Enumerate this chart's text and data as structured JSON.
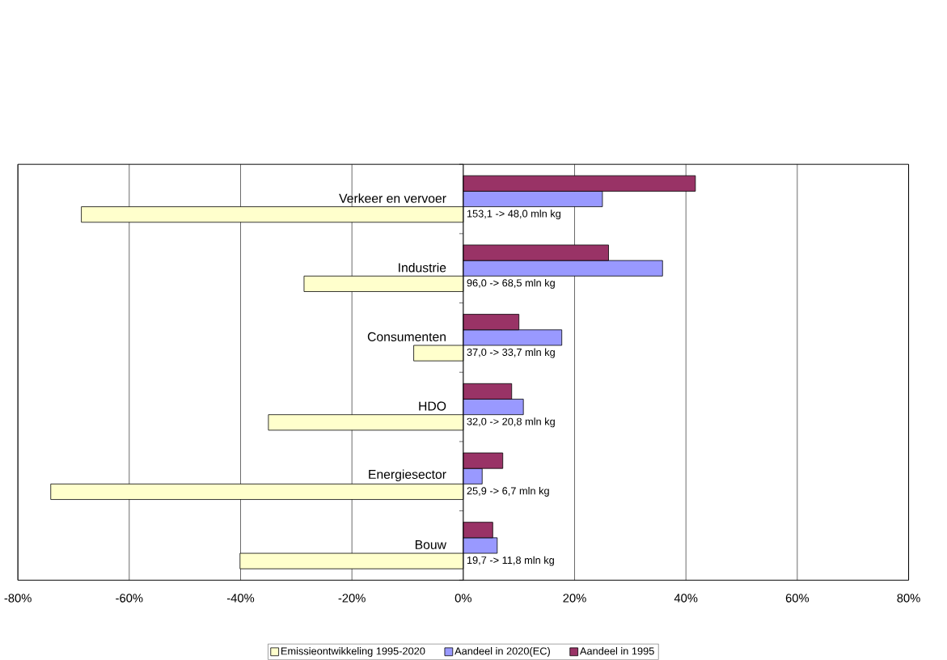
{
  "chart_data": {
    "type": "bar",
    "orientation": "horizontal",
    "categories": [
      "Verkeer en vervoer",
      "Industrie",
      "Consumenten",
      "HDO",
      "Energiesector",
      "Bouw"
    ],
    "series": [
      {
        "name": "Emissieontwikkeling 1995-2020",
        "color": "#ffffcc",
        "values": [
          -68.6,
          -28.6,
          -8.9,
          -35.0,
          -74.1,
          -40.1
        ]
      },
      {
        "name": "Aandeel in 2020(EC)",
        "color": "#9999ff",
        "values": [
          25.0,
          35.8,
          17.7,
          10.8,
          3.4,
          6.1
        ]
      },
      {
        "name": "Aandeel in 1995",
        "color": "#993366",
        "values": [
          41.7,
          26.1,
          10.0,
          8.7,
          7.1,
          5.3
        ]
      }
    ],
    "xlim": [
      -80,
      80
    ],
    "xticks": [
      {
        "value": -80,
        "label": "-80%"
      },
      {
        "value": -60,
        "label": "-60%"
      },
      {
        "value": -40,
        "label": "-40%"
      },
      {
        "value": -20,
        "label": "-20%"
      },
      {
        "value": 0,
        "label": "0%"
      },
      {
        "value": 20,
        "label": "20%"
      },
      {
        "value": 40,
        "label": "40%"
      },
      {
        "value": 60,
        "label": "60%"
      },
      {
        "value": 80,
        "label": "80%"
      }
    ],
    "grid": "x",
    "legend": "bottom",
    "annotations": [
      "153,1 -> 48,0 mln kg",
      "96,0 -> 68,5 mln kg",
      "37,0 -> 33,7 mln kg",
      "32,0 -> 20,8 mln kg",
      "25,9 -> 6,7 mln kg",
      "19,7 -> 11,8 mln kg"
    ]
  }
}
